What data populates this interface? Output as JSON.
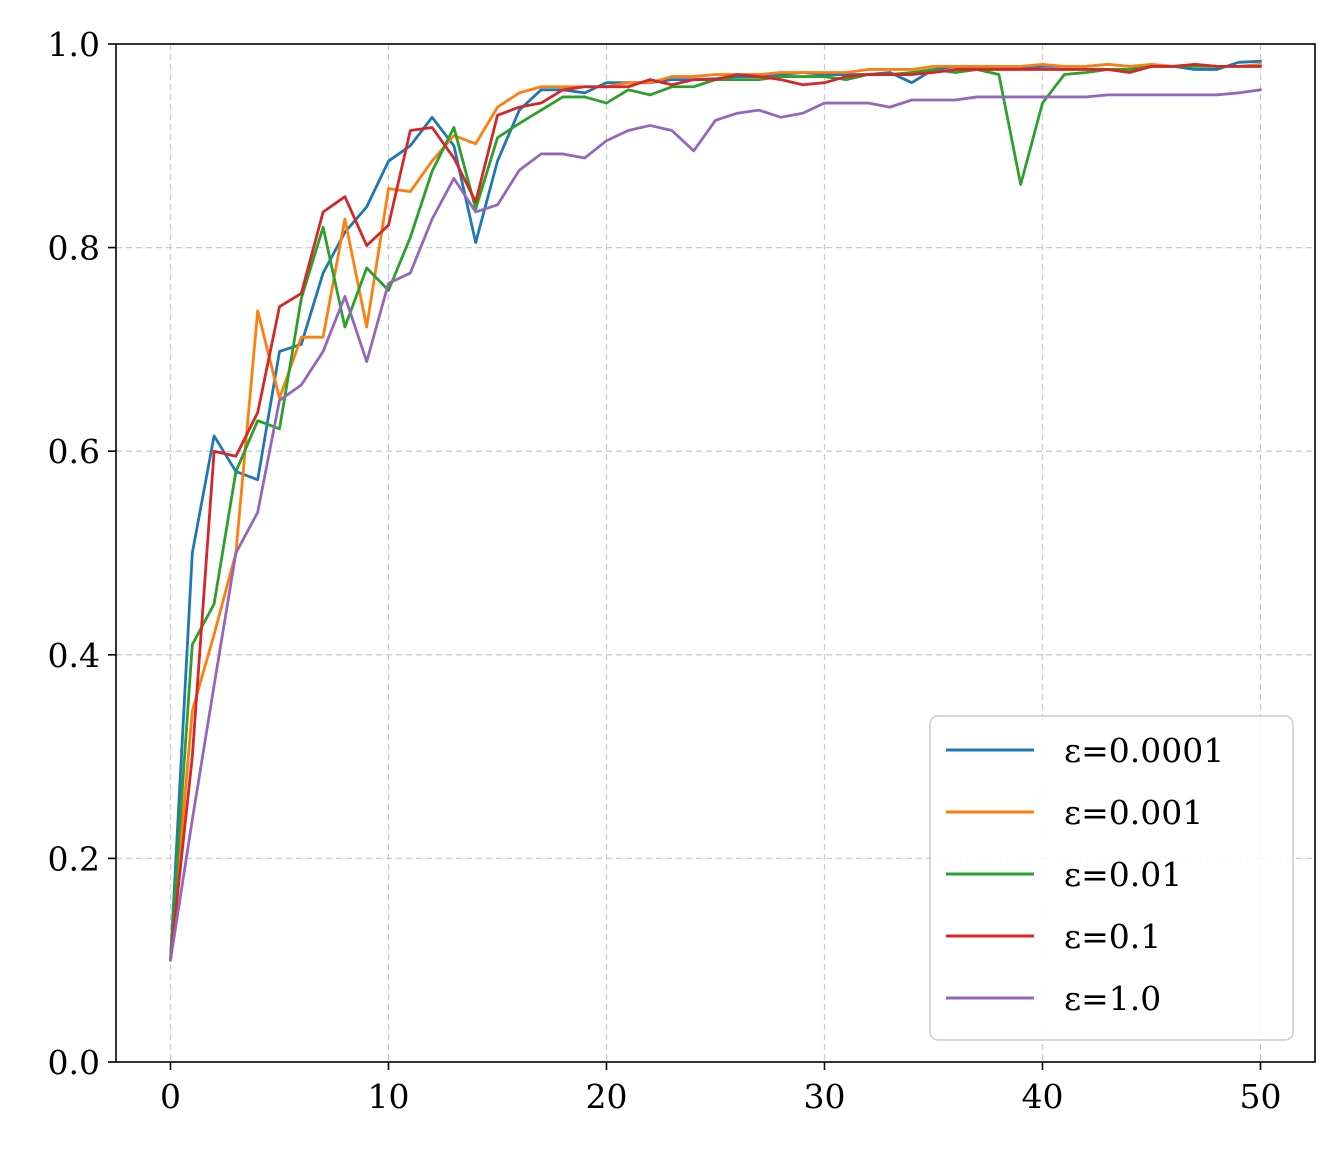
{
  "chart_data": {
    "type": "line",
    "title": "",
    "xlabel": "",
    "ylabel": "",
    "xlim": [
      -2.5,
      52.5
    ],
    "ylim": [
      0.0,
      1.0
    ],
    "x_ticks": [
      0,
      10,
      20,
      30,
      40,
      50
    ],
    "y_ticks": [
      0.0,
      0.2,
      0.4,
      0.6,
      0.8,
      1.0
    ],
    "x_tick_labels": [
      "0",
      "10",
      "20",
      "30",
      "40",
      "50"
    ],
    "y_tick_labels": [
      "0.0",
      "0.2",
      "0.4",
      "0.6",
      "0.8",
      "1.0"
    ],
    "grid": true,
    "legend_position": "lower-right",
    "x": [
      0,
      1,
      2,
      3,
      4,
      5,
      6,
      7,
      8,
      9,
      10,
      11,
      12,
      13,
      14,
      15,
      16,
      17,
      18,
      19,
      20,
      21,
      22,
      23,
      24,
      25,
      26,
      27,
      28,
      29,
      30,
      31,
      32,
      33,
      34,
      35,
      36,
      37,
      38,
      39,
      40,
      41,
      42,
      43,
      44,
      45,
      46,
      47,
      48,
      49,
      50
    ],
    "series": [
      {
        "name": "ε=0.0001",
        "color": "#1f77b4",
        "values": [
          0.1,
          0.5,
          0.615,
          0.58,
          0.572,
          0.698,
          0.705,
          0.775,
          0.815,
          0.84,
          0.885,
          0.9,
          0.928,
          0.9,
          0.805,
          0.885,
          0.935,
          0.955,
          0.955,
          0.952,
          0.962,
          0.962,
          0.962,
          0.965,
          0.965,
          0.966,
          0.968,
          0.968,
          0.97,
          0.972,
          0.97,
          0.97,
          0.97,
          0.972,
          0.962,
          0.975,
          0.978,
          0.976,
          0.976,
          0.976,
          0.978,
          0.978,
          0.978,
          0.98,
          0.978,
          0.978,
          0.978,
          0.975,
          0.975,
          0.982,
          0.983
        ]
      },
      {
        "name": "ε=0.001",
        "color": "#ff7f0e",
        "values": [
          0.1,
          0.345,
          0.42,
          0.5,
          0.738,
          0.652,
          0.712,
          0.712,
          0.828,
          0.722,
          0.858,
          0.855,
          0.885,
          0.91,
          0.902,
          0.938,
          0.952,
          0.958,
          0.958,
          0.958,
          0.958,
          0.962,
          0.962,
          0.968,
          0.968,
          0.97,
          0.97,
          0.97,
          0.972,
          0.972,
          0.972,
          0.972,
          0.975,
          0.975,
          0.975,
          0.978,
          0.978,
          0.978,
          0.978,
          0.978,
          0.98,
          0.978,
          0.978,
          0.98,
          0.978,
          0.98,
          0.978,
          0.98,
          0.978,
          0.978,
          0.98
        ]
      },
      {
        "name": "ε=0.01",
        "color": "#2ca02c",
        "values": [
          0.1,
          0.41,
          0.45,
          0.58,
          0.63,
          0.622,
          0.75,
          0.82,
          0.722,
          0.78,
          0.758,
          0.81,
          0.875,
          0.918,
          0.838,
          0.908,
          0.922,
          0.935,
          0.948,
          0.948,
          0.942,
          0.955,
          0.95,
          0.958,
          0.958,
          0.965,
          0.965,
          0.965,
          0.968,
          0.968,
          0.968,
          0.965,
          0.97,
          0.97,
          0.972,
          0.975,
          0.972,
          0.975,
          0.97,
          0.862,
          0.942,
          0.97,
          0.972,
          0.975,
          0.975,
          0.978,
          0.978,
          0.978,
          0.978,
          0.978,
          0.978
        ]
      },
      {
        "name": "ε=0.1",
        "color": "#d62728",
        "values": [
          0.1,
          0.3,
          0.6,
          0.595,
          0.638,
          0.742,
          0.755,
          0.835,
          0.85,
          0.802,
          0.822,
          0.915,
          0.918,
          0.888,
          0.845,
          0.93,
          0.938,
          0.942,
          0.955,
          0.958,
          0.958,
          0.958,
          0.965,
          0.96,
          0.965,
          0.965,
          0.97,
          0.968,
          0.965,
          0.96,
          0.962,
          0.968,
          0.97,
          0.97,
          0.97,
          0.972,
          0.975,
          0.975,
          0.975,
          0.975,
          0.975,
          0.975,
          0.975,
          0.975,
          0.972,
          0.978,
          0.978,
          0.98,
          0.978,
          0.978,
          0.978
        ]
      },
      {
        "name": "ε=1.0",
        "color": "#9467bd",
        "values": [
          0.1,
          0.238,
          0.37,
          0.5,
          0.54,
          0.65,
          0.665,
          0.698,
          0.752,
          0.688,
          0.765,
          0.775,
          0.828,
          0.868,
          0.835,
          0.842,
          0.876,
          0.892,
          0.892,
          0.888,
          0.905,
          0.915,
          0.92,
          0.915,
          0.895,
          0.925,
          0.932,
          0.935,
          0.928,
          0.932,
          0.942,
          0.942,
          0.942,
          0.938,
          0.945,
          0.945,
          0.945,
          0.948,
          0.948,
          0.948,
          0.948,
          0.948,
          0.948,
          0.95,
          0.95,
          0.95,
          0.95,
          0.95,
          0.95,
          0.952,
          0.955
        ]
      }
    ]
  }
}
